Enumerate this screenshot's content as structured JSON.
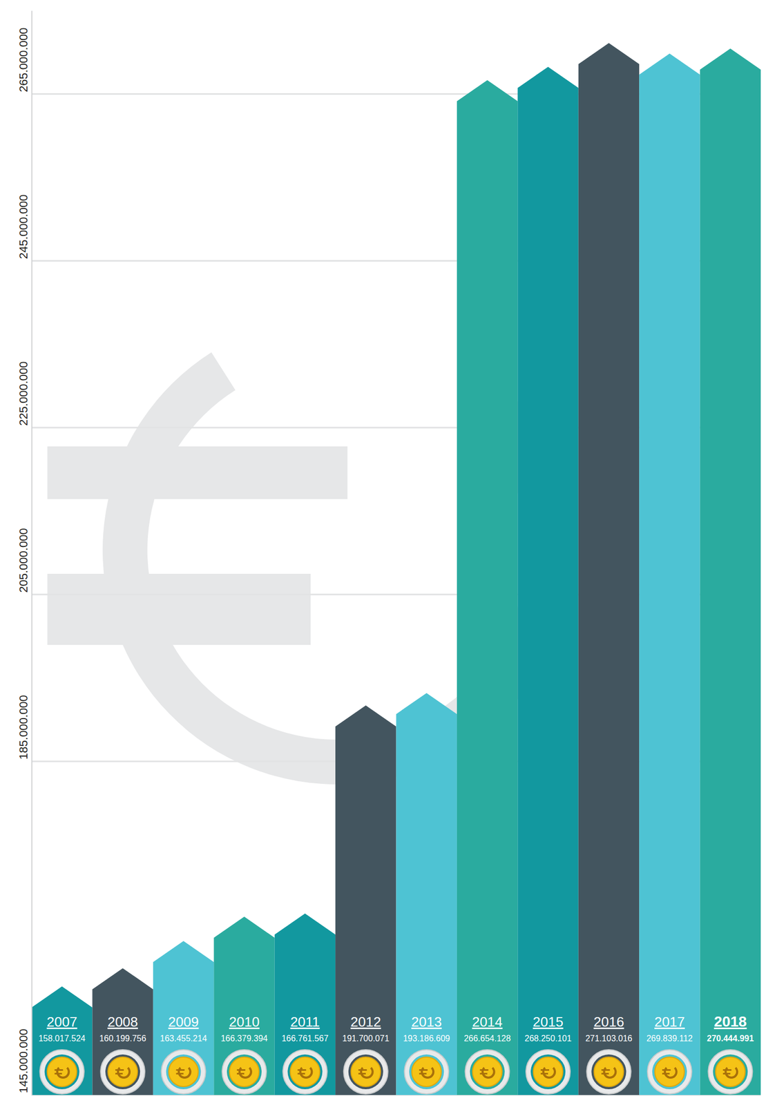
{
  "chart_data": {
    "type": "bar",
    "categories": [
      "2007",
      "2008",
      "2009",
      "2010",
      "2011",
      "2012",
      "2013",
      "2014",
      "2015",
      "2016",
      "2017",
      "2018"
    ],
    "values": [
      158017524,
      160199756,
      163455214,
      166379394,
      166761567,
      191700071,
      193186609,
      266654128,
      268250101,
      271103016,
      269839112,
      270444991
    ],
    "value_labels": [
      "158.017.524",
      "160.199.756",
      "163.455.214",
      "166.379.394",
      "166.761.567",
      "191.700.071",
      "193.186.609",
      "266.654.128",
      "268.250.101",
      "271.103.016",
      "269.839.112",
      "270.444.991"
    ],
    "colors": [
      "#12989f",
      "#43555f",
      "#4ec3d3",
      "#2aab9f",
      "#12989f",
      "#43555f",
      "#4ec3d3",
      "#2aab9f",
      "#12989f",
      "#43555f",
      "#4ec3d3",
      "#2aab9f"
    ],
    "ylim": [
      145000000,
      275000000
    ],
    "yticks": [
      {
        "value": 145000000,
        "label": "145.000.000"
      },
      {
        "value": 185000000,
        "label": "185.000.000"
      },
      {
        "value": 205000000,
        "label": "205.000.000"
      },
      {
        "value": 225000000,
        "label": "225.000.000"
      },
      {
        "value": 245000000,
        "label": "245.000.000"
      },
      {
        "value": 265000000,
        "label": "265.000.000"
      }
    ],
    "grid": true,
    "data_labels": true
  }
}
